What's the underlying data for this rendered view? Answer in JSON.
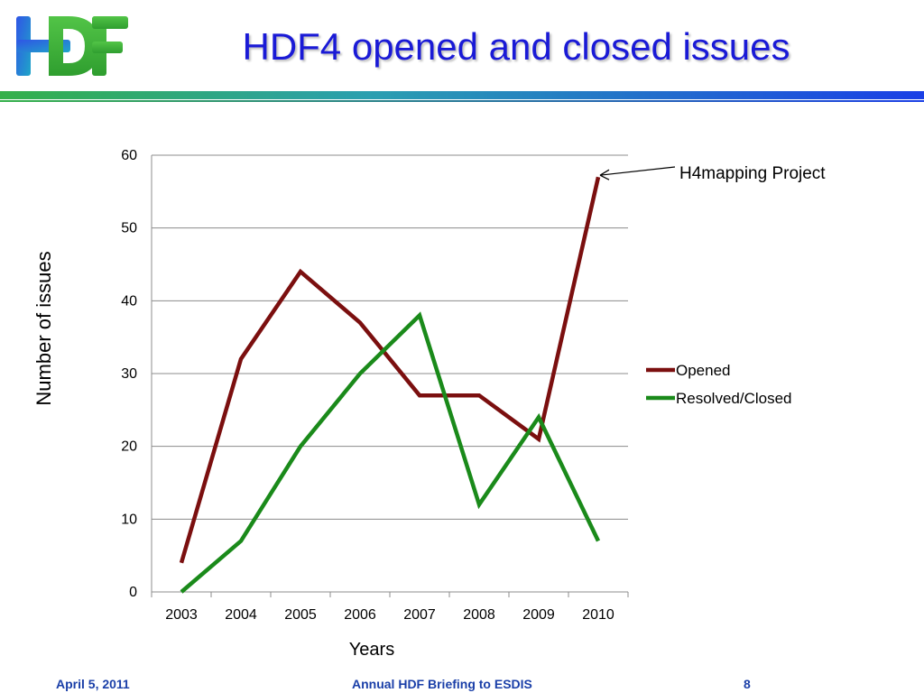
{
  "slide": {
    "title": "HDF4  opened and closed issues",
    "logo_text": "HDF"
  },
  "colors": {
    "title": "#1a1ad6",
    "opened": "#7b0f0f",
    "closed": "#1a8a1a",
    "grid": "#8c8c8c",
    "footer": "#1a3fa8"
  },
  "chart_data": {
    "type": "line",
    "x": [
      "2003",
      "2004",
      "2005",
      "2006",
      "2007",
      "2008",
      "2009",
      "2010"
    ],
    "series": [
      {
        "name": "Opened",
        "values": [
          4,
          32,
          44,
          37,
          27,
          27,
          21,
          57
        ]
      },
      {
        "name": "Resolved/Closed",
        "values": [
          0,
          7,
          20,
          30,
          38,
          12,
          24,
          7
        ]
      }
    ],
    "xlabel": "Years",
    "ylabel": "Number of issues",
    "ylim": [
      0,
      60
    ],
    "yticks": [
      0,
      10,
      20,
      30,
      40,
      50,
      60
    ],
    "grid": true,
    "legend": "right",
    "annotation": {
      "text": "H4mapping Project",
      "x": "2010",
      "y": 57
    }
  },
  "footer": {
    "date": "April 5, 2011",
    "center": "Annual HDF Briefing to ESDIS",
    "page": "8"
  }
}
